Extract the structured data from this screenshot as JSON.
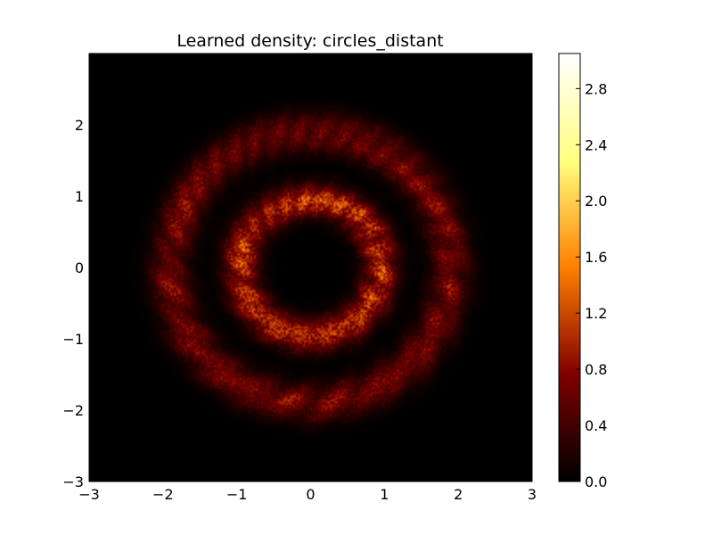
{
  "chart_data": {
    "type": "heatmap",
    "title": "Learned density: circles_distant",
    "xlabel": "",
    "ylabel": "",
    "xlim": [
      -3,
      3
    ],
    "ylim": [
      -3,
      3
    ],
    "xticks": [
      "−3",
      "−2",
      "−1",
      "0",
      "1",
      "2",
      "3"
    ],
    "yticks": [
      "−3",
      "−2",
      "−1",
      "0",
      "1",
      "2"
    ],
    "colormap": "afmhot",
    "colorbar": {
      "min": 0.0,
      "max": 3.05,
      "ticks": [
        "0.0",
        "0.4",
        "0.8",
        "1.2",
        "1.6",
        "2.0",
        "2.4",
        "2.8"
      ],
      "tick_values": [
        0.0,
        0.4,
        0.8,
        1.2,
        1.6,
        2.0,
        2.4,
        2.8
      ]
    },
    "rings": [
      {
        "name": "inner",
        "center": [
          0,
          0
        ],
        "radius": 0.95,
        "width": 0.16,
        "peak_density": 1.1
      },
      {
        "name": "outer",
        "center": [
          0,
          0
        ],
        "radius": 1.9,
        "width": 0.18,
        "peak_density": 0.7
      }
    ],
    "grid": false
  },
  "colors": {
    "background": "#000000",
    "frame": "#000000",
    "figure": "#ffffff"
  }
}
